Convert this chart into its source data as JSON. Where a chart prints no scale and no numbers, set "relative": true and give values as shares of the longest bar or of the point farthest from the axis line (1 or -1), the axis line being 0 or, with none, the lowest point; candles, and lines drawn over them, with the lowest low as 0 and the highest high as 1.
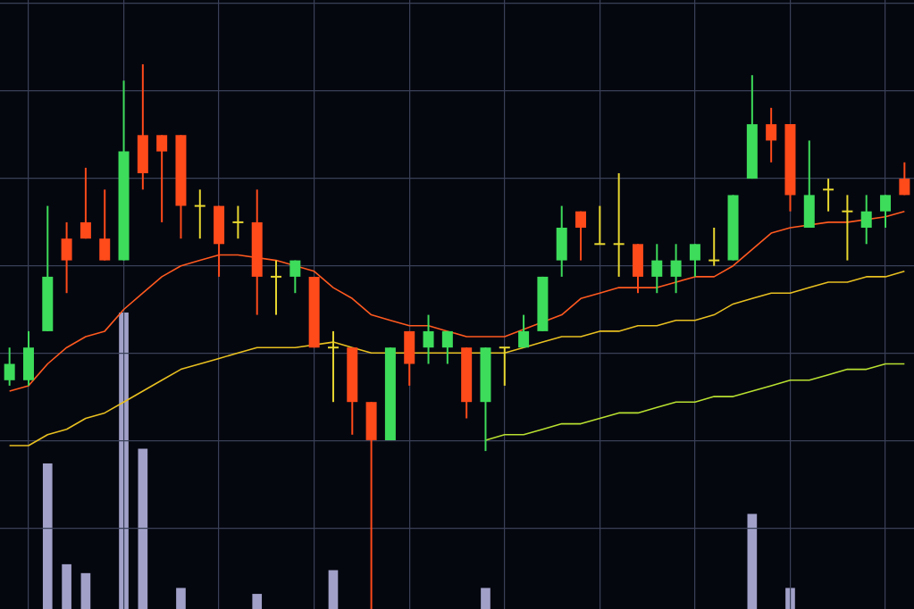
{
  "chart_data": [
    {
      "type": "candlestick",
      "relative": true,
      "grid": true,
      "marker": "none",
      "categories": [
        null,
        null,
        null,
        null,
        null,
        null,
        null,
        null,
        null,
        null,
        null,
        null,
        null,
        null,
        null,
        null,
        null,
        null,
        null,
        null,
        null,
        null,
        null,
        null,
        null,
        null,
        null,
        null,
        null,
        null,
        null,
        null,
        null,
        null,
        null,
        null,
        null,
        null,
        null,
        null,
        null,
        null,
        null,
        null,
        null,
        null,
        null,
        null
      ],
      "ohlc": [
        [
          0.45,
          0.48,
          0.41,
          0.42
        ],
        [
          0.48,
          0.51,
          0.41,
          0.42
        ],
        [
          0.61,
          0.74,
          0.51,
          0.51
        ],
        [
          0.64,
          0.71,
          0.58,
          0.68
        ],
        [
          0.68,
          0.81,
          0.68,
          0.71
        ],
        [
          0.64,
          0.77,
          0.64,
          0.68
        ],
        [
          0.84,
          0.97,
          0.64,
          0.64
        ],
        [
          0.8,
          1.0,
          0.77,
          0.87
        ],
        [
          0.84,
          0.87,
          0.71,
          0.87
        ],
        [
          0.74,
          0.87,
          0.68,
          0.87
        ],
        [
          0.74,
          0.77,
          0.68,
          0.74
        ],
        [
          0.67,
          0.74,
          0.61,
          0.74
        ],
        [
          0.71,
          0.74,
          0.68,
          0.71
        ],
        [
          0.61,
          0.77,
          0.54,
          0.71
        ],
        [
          0.61,
          0.64,
          0.54,
          0.61
        ],
        [
          0.64,
          0.64,
          0.58,
          0.61
        ],
        [
          0.48,
          0.61,
          0.48,
          0.61
        ],
        [
          0.48,
          0.51,
          0.38,
          0.48
        ],
        [
          0.38,
          0.48,
          0.32,
          0.48
        ],
        [
          0.31,
          0.38,
          0,
          0.38
        ],
        [
          0.48,
          0.48,
          0.31,
          0.31
        ],
        [
          0.45,
          0.51,
          0.41,
          0.51
        ],
        [
          0.51,
          0.54,
          0.45,
          0.48
        ],
        [
          0.51,
          0.51,
          0.45,
          0.48
        ],
        [
          0.38,
          0.48,
          0.35,
          0.48
        ],
        [
          0.48,
          0.48,
          0.29,
          0.38
        ],
        [
          0.48,
          0.48,
          0.41,
          0.48
        ],
        [
          0.51,
          0.54,
          0.48,
          0.48
        ],
        [
          0.61,
          0.61,
          0.51,
          0.51
        ],
        [
          0.7,
          0.74,
          0.61,
          0.64
        ],
        [
          0.7,
          0.73,
          0.64,
          0.73
        ],
        [
          0.67,
          0.74,
          0.67,
          0.67
        ],
        [
          0.67,
          0.8,
          0.61,
          0.67
        ],
        [
          0.61,
          0.67,
          0.58,
          0.67
        ],
        [
          0.64,
          0.67,
          0.58,
          0.61
        ],
        [
          0.64,
          0.67,
          0.58,
          0.61
        ],
        [
          0.67,
          0.67,
          0.61,
          0.64
        ],
        [
          0.64,
          0.7,
          0.63,
          0.64
        ],
        [
          0.76,
          0.76,
          0.64,
          0.64
        ],
        [
          0.89,
          0.98,
          0.79,
          0.79
        ],
        [
          0.86,
          0.92,
          0.82,
          0.89
        ],
        [
          0.76,
          0.89,
          0.73,
          0.89
        ],
        [
          0.76,
          0.86,
          0.7,
          0.7
        ],
        [
          0.77,
          0.79,
          0.73,
          0.77
        ],
        [
          0.73,
          0.76,
          0.64,
          0.73
        ],
        [
          0.73,
          0.76,
          0.67,
          0.7
        ],
        [
          0.76,
          0.76,
          0.7,
          0.73
        ],
        [
          0.76,
          0.82,
          0.76,
          0.79
        ]
      ],
      "colors": [
        "#3ddc5a",
        "#3ddc5a",
        "#3ddc5a",
        "#ff4a1a",
        "#ff4a1a",
        "#ff4a1a",
        "#3ddc5a",
        "#ff4a1a",
        "#ff4a1a",
        "#ff4a1a",
        "#e8d830",
        "#ff4a1a",
        "#e8d830",
        "#ff4a1a",
        "#e8d830",
        "#3ddc5a",
        "#ff4a1a",
        "#e8d830",
        "#ff4a1a",
        "#ff4a1a",
        "#3ddc5a",
        "#ff4a1a",
        "#3ddc5a",
        "#3ddc5a",
        "#ff4a1a",
        "#3ddc5a",
        "#e8d830",
        "#3ddc5a",
        "#3ddc5a",
        "#3ddc5a",
        "#ff4a1a",
        "#e8d830",
        "#e8d830",
        "#ff4a1a",
        "#3ddc5a",
        "#3ddc5a",
        "#3ddc5a",
        "#e8d830",
        "#3ddc5a",
        "#3ddc5a",
        "#ff4a1a",
        "#ff4a1a",
        "#3ddc5a",
        "#e8d830",
        "#e8d830",
        "#3ddc5a",
        "#3ddc5a",
        "#ff4a1a"
      ],
      "series": [
        {
          "type": "line",
          "color": "#ff5a1f",
          "values": [
            0.4,
            0.41,
            0.45,
            0.48,
            0.5,
            0.51,
            0.55,
            0.58,
            0.61,
            0.63,
            0.64,
            0.65,
            0.65,
            null,
            0.64,
            null,
            0.62,
            0.59,
            0.57,
            0.54,
            0.53,
            0.52,
            0.52,
            0.51,
            0.5,
            0.5,
            0.5,
            null,
            null,
            0.54,
            0.57,
            0.58,
            0.59,
            0.59,
            0.59,
            0.6,
            0.61,
            0.61,
            0.63,
            0.66,
            0.69,
            0.7,
            null,
            0.71,
            0.71,
            null,
            0.72,
            0.73
          ]
        },
        {
          "type": "line",
          "color": "#e8c020",
          "values": [
            0.3,
            0.3,
            0.32,
            0.33,
            0.35,
            0.36,
            0.38,
            0.4,
            0.42,
            0.44,
            0.45,
            0.46,
            0.47,
            0.48,
            0.48,
            0.48,
            null,
            0.49,
            0.48,
            0.47,
            null,
            null,
            0.47,
            0.47,
            null,
            null,
            0.47,
            0.48,
            0.49,
            0.5,
            0.5,
            0.51,
            0.51,
            0.52,
            0.52,
            0.53,
            0.53,
            0.54,
            0.56,
            0.57,
            0.58,
            0.58,
            0.59,
            0.6,
            0.6,
            0.61,
            0.61,
            0.62
          ]
        },
        {
          "type": "line",
          "color": "#b8e030",
          "values": [
            null,
            null,
            null,
            null,
            null,
            null,
            null,
            null,
            null,
            null,
            null,
            null,
            null,
            null,
            null,
            null,
            null,
            null,
            null,
            null,
            null,
            null,
            null,
            null,
            null,
            0.31,
            0.32,
            0.32,
            0.33,
            0.34,
            0.34,
            0.35,
            0.36,
            0.36,
            0.37,
            0.38,
            0.38,
            0.39,
            0.39,
            0.4,
            0.41,
            0.42,
            0.42,
            0.43,
            0.44,
            0.44,
            0.45,
            0.45
          ]
        }
      ]
    },
    {
      "type": "bar",
      "relative": true,
      "color": "#a0a0c8",
      "categories": [
        null,
        null,
        null,
        null,
        null,
        null,
        null,
        null,
        null,
        null,
        null,
        null,
        null,
        null,
        null,
        null,
        null,
        null,
        null,
        null,
        null,
        null,
        null,
        null,
        null,
        null,
        null,
        null,
        null,
        null,
        null,
        null,
        null,
        null,
        null,
        null,
        null,
        null,
        null,
        null,
        null,
        null,
        null,
        null,
        null,
        null,
        null,
        null
      ],
      "values": [
        null,
        null,
        0.49,
        0.15,
        0.12,
        null,
        1,
        0.54,
        null,
        0.07,
        null,
        null,
        null,
        0.05,
        null,
        null,
        null,
        0.13,
        null,
        null,
        null,
        null,
        null,
        null,
        null,
        0.07,
        null,
        null,
        null,
        null,
        null,
        null,
        null,
        null,
        null,
        null,
        null,
        null,
        null,
        0.32,
        null,
        0.07,
        null,
        null,
        null,
        null,
        null,
        null
      ]
    }
  ]
}
